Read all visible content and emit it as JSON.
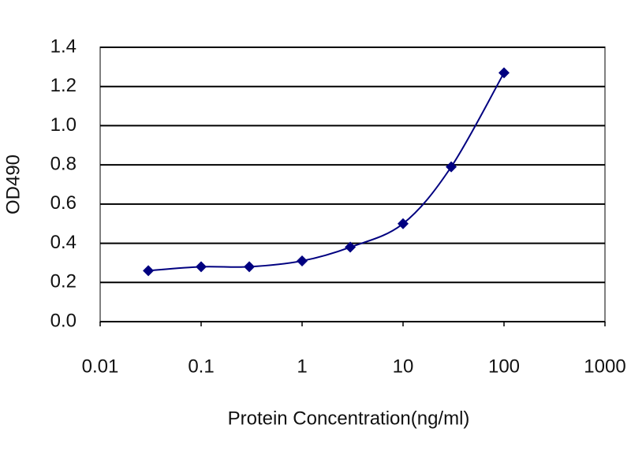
{
  "chart_data": {
    "type": "line",
    "x_label": "Protein Concentration(ng/ml)",
    "y_label": "OD490",
    "log_x": true,
    "grid": true,
    "series": [
      {
        "color": "#000080",
        "x": [
          0.03,
          0.1,
          0.3,
          1,
          3,
          10,
          30,
          100
        ],
        "values": [
          0.26,
          0.28,
          0.28,
          0.31,
          0.38,
          0.5,
          0.79,
          1.27
        ]
      }
    ],
    "xlim": [
      0.01,
      1000
    ],
    "xticks": [
      0.01,
      0.1,
      1,
      10,
      100,
      1000
    ],
    "ylim": [
      0,
      1.4
    ],
    "yticks": [
      {
        "value": 0,
        "label": "0.0"
      },
      0.2,
      0.4,
      0.6,
      0.8,
      {
        "value": 1,
        "label": "1.0"
      },
      1.2,
      1.4
    ]
  }
}
